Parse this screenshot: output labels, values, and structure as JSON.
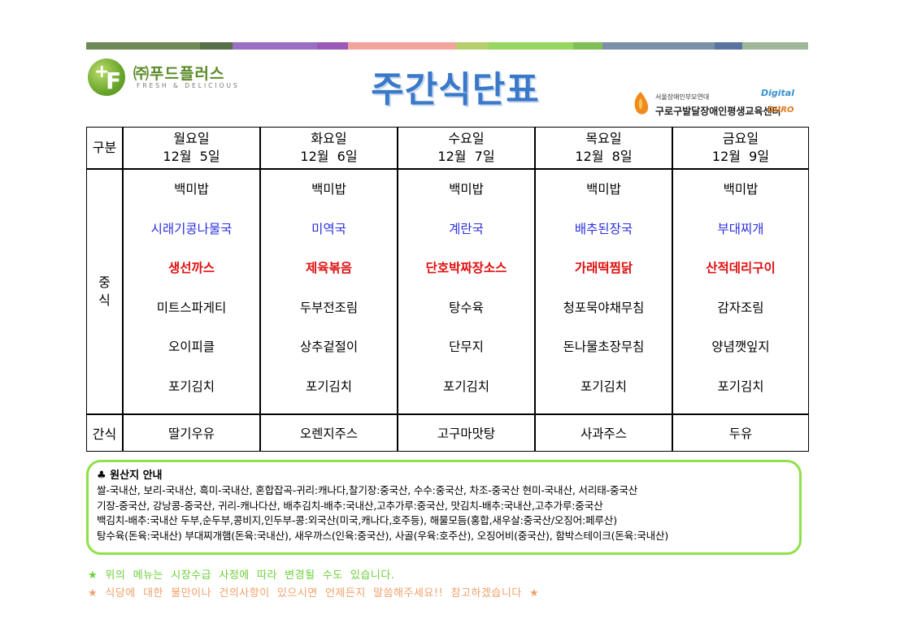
{
  "colors": {
    "topbar": [
      "#6f8a56",
      "#57704a",
      "#9a6ec0",
      "#9b5ab8",
      "#f2a39a",
      "#b6cf6c",
      "#97d65f",
      "#7c8fa8",
      "#5a74a2",
      "#9fb89a"
    ],
    "blue_text": "#2a2ee0",
    "red_text": "#e01010",
    "frame": "#8fe04a"
  },
  "logo": {
    "name": "㈜푸드플러스",
    "tagline": "FRESH & DELICIOUS"
  },
  "title": "주간식단표",
  "center": {
    "sub": "서울장애인부모연대",
    "name": "구로구발달장애인평생교육센터",
    "digital": "Digital",
    "guro": "GURO"
  },
  "table": {
    "category_header": "구분",
    "main_label": [
      "중",
      "식"
    ],
    "snack_label": "간식",
    "days": [
      {
        "day": "월요일",
        "date": "12월  5일",
        "items": [
          "백미밥",
          "시래기콩나물국",
          "생선까스",
          "미트스파게티",
          "오이피클",
          "포기김치"
        ],
        "snack": "딸기우유"
      },
      {
        "day": "화요일",
        "date": "12월  6일",
        "items": [
          "백미밥",
          "미역국",
          "제육볶음",
          "두부전조림",
          "상추겉절이",
          "포기김치"
        ],
        "snack": "오렌지주스"
      },
      {
        "day": "수요일",
        "date": "12월  7일",
        "items": [
          "백미밥",
          "계란국",
          "단호박짜장소스",
          "탕수육",
          "단무지",
          "포기김치"
        ],
        "snack": "고구마맛탕"
      },
      {
        "day": "목요일",
        "date": "12월  8일",
        "items": [
          "백미밥",
          "배추된장국",
          "가래떡찜닭",
          "청포묵야채무침",
          "돈나물초장무침",
          "포기김치"
        ],
        "snack": "사과주스"
      },
      {
        "day": "금요일",
        "date": "12월  9일",
        "items": [
          "백미밥",
          "부대찌개",
          "산적데리구이",
          "감자조림",
          "양념깻잎지",
          "포기김치"
        ],
        "snack": "두유"
      }
    ]
  },
  "origin": {
    "head": "♣ 원산지 안내",
    "lines": [
      "쌀-국내산,  보리-국내산,  흑미-국내산,  혼합잡곡-귀리:캐나다,찰기장:중국산,  수수:중국산,  차조-중국산  현미-국내산,    서리태-중국산",
      "기장-중국산,  강낭콩-중국산,  귀리-캐나다산,  배추김치-배추:국내산,고추가루:중국산,  맛김치-배추:국내산,고추가루:중국산",
      "백김치-배추:국내산  두부,순두부,콩비지,인두부-콩:외국산(미국,캐나다,호주등),  해물모듬(홍합,새우살:중국산/오징어:페루산)",
      "탕수육(돈육:국내산)  부대찌개햄(돈육:국내산),  새우까스(인육:중국산),  사골(우육:호주산),  오징어비(중국산),  함박스테이크(돈육:국내산)"
    ]
  },
  "notes": [
    "★  위의  메뉴는  시장수급  사정에  따라  변경될  수도  있습니다.",
    "★  식당에  대한  불만이나  건의사항이  있으시면  언제든지  말씀해주세요!!  참고하겠습니다  ★"
  ]
}
